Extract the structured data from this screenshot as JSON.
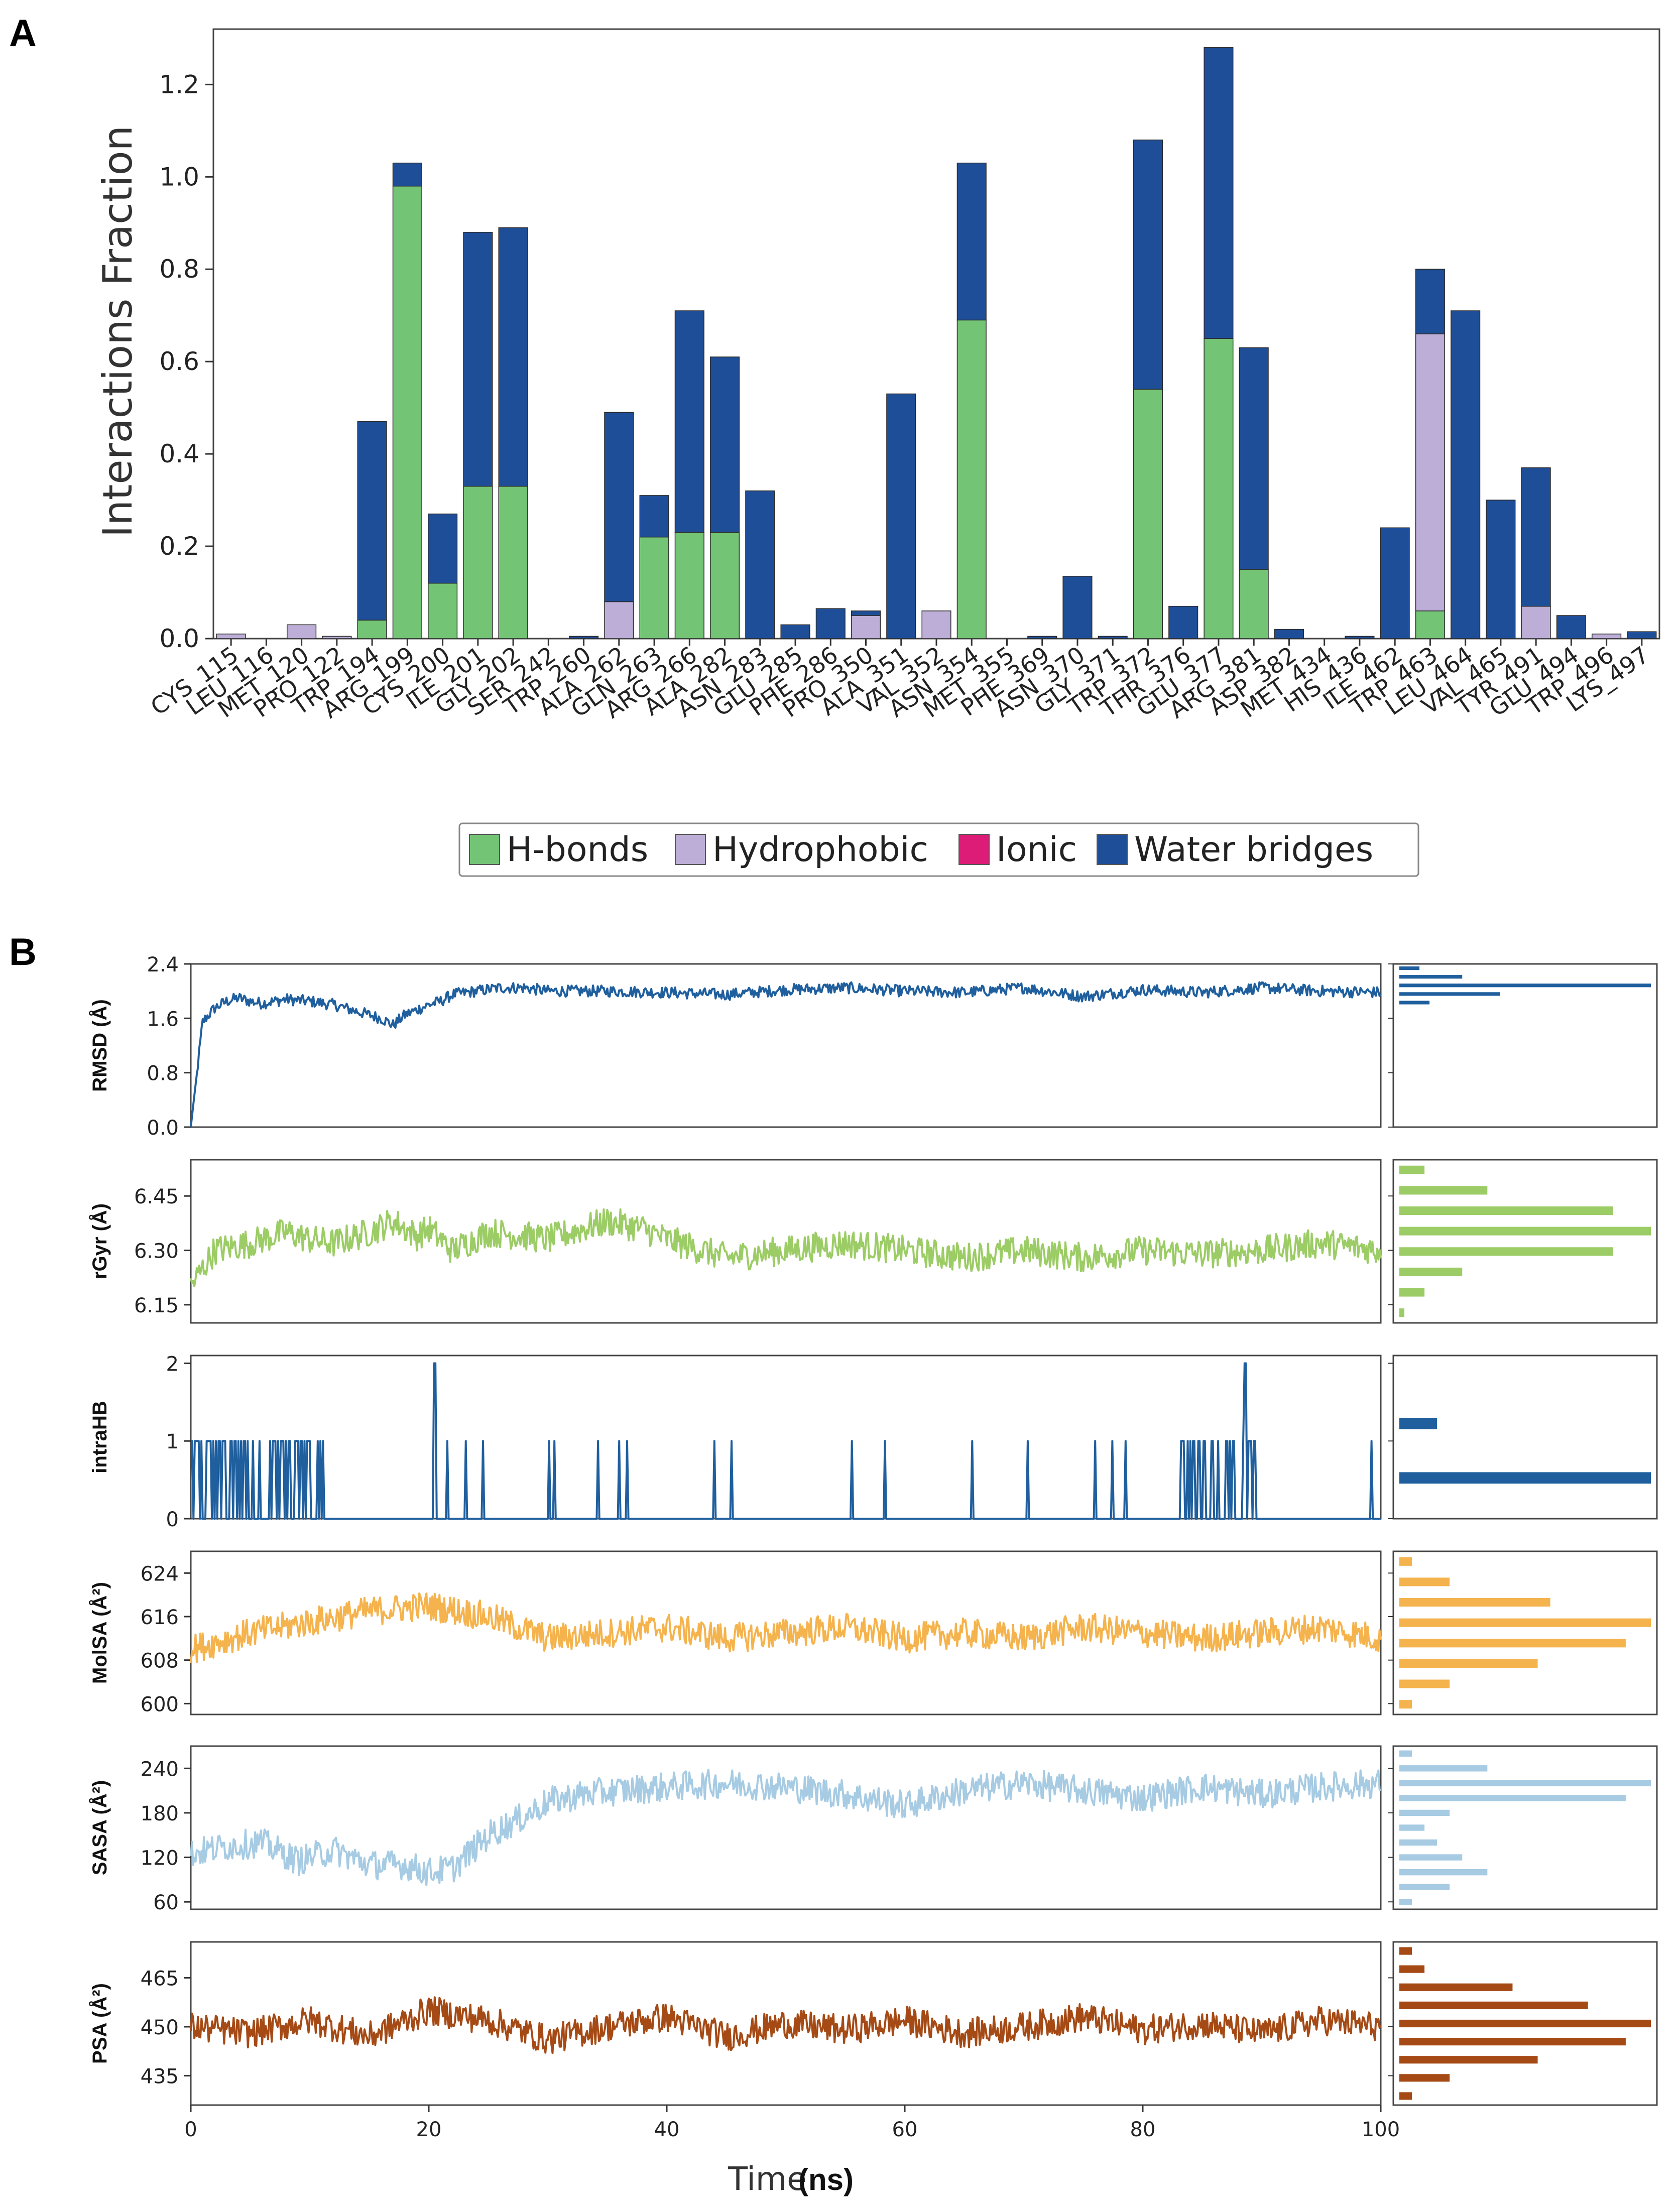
{
  "panel_a_label": "A",
  "panel_b_label": "B",
  "chart_data": [
    {
      "type": "bar",
      "stacked": true,
      "title": "",
      "ylabel": "Interactions Fraction",
      "xlabel": "",
      "ylim": [
        0,
        1.32
      ],
      "yticks": [
        0.0,
        0.2,
        0.4,
        0.6,
        0.8,
        1.0,
        1.2
      ],
      "categories": [
        "CYS_115",
        "LEU_116",
        "MET_120",
        "PRO_122",
        "TRP_194",
        "ARG_199",
        "CYS_200",
        "ILE_201",
        "GLY_202",
        "SER_242",
        "TRP_260",
        "ALA_262",
        "GLN_263",
        "ARG_266",
        "ALA_282",
        "ASN_283",
        "GLU_285",
        "PHE_286",
        "PRO_350",
        "ALA_351",
        "VAL_352",
        "ASN_354",
        "MET_355",
        "PHE_369",
        "ASN_370",
        "GLY_371",
        "TRP_372",
        "THR_376",
        "GLU_377",
        "ARG_381",
        "ASP_382",
        "MET_434",
        "HIS_436",
        "ILE_462",
        "TRP_463",
        "LEU_464",
        "VAL_465",
        "TYR_491",
        "GLU_494",
        "TRP_496",
        "LYS_497"
      ],
      "series": [
        {
          "name": "H-bonds",
          "color": "#74c476",
          "values": [
            0,
            0,
            0,
            0,
            0.04,
            0.98,
            0.12,
            0.33,
            0.33,
            0,
            0,
            0,
            0.22,
            0.23,
            0.23,
            0,
            0,
            0,
            0,
            0,
            0,
            0.69,
            0,
            0,
            0,
            0,
            0.54,
            0,
            0.65,
            0.15,
            0,
            0,
            0,
            0,
            0.06,
            0,
            0,
            0,
            0,
            0,
            0
          ]
        },
        {
          "name": "Hydrophobic",
          "color": "#bcaed6",
          "values": [
            0.01,
            0,
            0.03,
            0.005,
            0,
            0,
            0,
            0,
            0,
            0,
            0,
            0.08,
            0,
            0,
            0,
            0,
            0,
            0,
            0.05,
            0,
            0.06,
            0,
            0,
            0,
            0,
            0,
            0,
            0,
            0,
            0,
            0,
            0,
            0,
            0,
            0.6,
            0,
            0,
            0.07,
            0,
            0.01,
            0
          ]
        },
        {
          "name": "Ionic",
          "color": "#dd1c77",
          "values": [
            0,
            0,
            0,
            0,
            0,
            0,
            0,
            0,
            0,
            0,
            0,
            0,
            0,
            0,
            0,
            0,
            0,
            0,
            0,
            0,
            0,
            0,
            0,
            0,
            0,
            0,
            0,
            0,
            0,
            0,
            0,
            0,
            0,
            0,
            0,
            0,
            0,
            0,
            0,
            0,
            0
          ]
        },
        {
          "name": "Water bridges",
          "color": "#1f4e99",
          "values": [
            0,
            0,
            0,
            0,
            0.43,
            0.05,
            0.15,
            0.55,
            0.56,
            0,
            0.005,
            0.41,
            0.09,
            0.48,
            0.38,
            0.32,
            0.03,
            0.065,
            0.01,
            0.53,
            0,
            0.34,
            0,
            0.005,
            0.135,
            0.005,
            0.54,
            0.07,
            0.63,
            0.48,
            0.02,
            0,
            0.005,
            0.24,
            0.14,
            0.71,
            0.3,
            0.3,
            0.05,
            0,
            0.015
          ]
        }
      ],
      "legend": [
        "H-bonds",
        "Hydrophobic",
        "Ionic",
        "Water bridges"
      ],
      "legend_position": "bottom-center"
    },
    {
      "type": "line",
      "ylabel": "RMSD (Å)",
      "color": "#1f5f9e",
      "yticks": [
        "0.0",
        "0.8",
        "1.6",
        "2.4"
      ],
      "ylim": [
        0,
        2.4
      ],
      "x": [
        0,
        1,
        2,
        3,
        4,
        5,
        6,
        8,
        10,
        12,
        14,
        16,
        17,
        18,
        20,
        21,
        22,
        24,
        26,
        28,
        30,
        35,
        40,
        45,
        50,
        55,
        60,
        65,
        70,
        75,
        80,
        85,
        90,
        95,
        100
      ],
      "values": [
        0,
        1.55,
        1.75,
        1.85,
        1.9,
        1.85,
        1.82,
        1.88,
        1.85,
        1.8,
        1.7,
        1.6,
        1.5,
        1.65,
        1.8,
        1.85,
        1.95,
        2.0,
        2.05,
        2.05,
        2.0,
        2.0,
        1.98,
        1.95,
        2.02,
        2.05,
        2.0,
        1.98,
        2.05,
        1.92,
        2.02,
        1.98,
        2.05,
        2.0,
        1.98
      ],
      "hist": [
        0,
        0,
        0,
        0,
        0,
        0,
        0,
        0,
        0,
        0,
        0,
        0,
        0,
        0,
        0.12,
        0.4,
        1.0,
        0.25,
        0.08
      ]
    },
    {
      "type": "line",
      "ylabel": "rGyr (Å)",
      "color": "#9ccc65",
      "yticks": [
        "6.15",
        "6.30",
        "6.45"
      ],
      "ylim": [
        6.1,
        6.55
      ],
      "x": [
        0,
        2,
        5,
        8,
        10,
        12,
        15,
        17,
        19,
        20,
        22,
        25,
        28,
        30,
        32,
        35,
        38,
        40,
        45,
        50,
        55,
        60,
        65,
        70,
        75,
        80,
        85,
        90,
        95,
        100
      ],
      "values": [
        6.2,
        6.3,
        6.32,
        6.35,
        6.33,
        6.32,
        6.35,
        6.38,
        6.34,
        6.36,
        6.3,
        6.35,
        6.34,
        6.33,
        6.35,
        6.38,
        6.36,
        6.33,
        6.28,
        6.3,
        6.32,
        6.3,
        6.28,
        6.3,
        6.28,
        6.3,
        6.29,
        6.3,
        6.32,
        6.3
      ],
      "hist": [
        0.02,
        0.1,
        0.25,
        0.85,
        1.0,
        0.85,
        0.35,
        0.1
      ]
    },
    {
      "type": "line",
      "ylabel": "intraHB",
      "color": "#1f5f9e",
      "yticks": [
        "0",
        "1",
        "2"
      ],
      "ylim": [
        0,
        2.1
      ],
      "hist": [
        0,
        1.0,
        0,
        0.15,
        0,
        0
      ]
    },
    {
      "type": "line",
      "ylabel": "MolSA (Å²)",
      "color": "#f5b34d",
      "yticks": [
        "600",
        "608",
        "616",
        "624"
      ],
      "ylim": [
        598,
        628
      ],
      "x": [
        0,
        5,
        10,
        15,
        20,
        25,
        30,
        35,
        40,
        45,
        50,
        55,
        60,
        65,
        70,
        75,
        80,
        85,
        90,
        95,
        100
      ],
      "values": [
        610,
        613,
        615,
        617,
        618,
        616,
        612,
        613,
        614,
        612,
        613,
        614,
        612,
        613,
        612,
        614,
        613,
        612,
        613,
        614,
        612
      ],
      "hist": [
        0.05,
        0.2,
        0.55,
        0.9,
        1.0,
        0.6,
        0.2,
        0.05
      ]
    },
    {
      "type": "line",
      "ylabel": "SASA (Å²)",
      "color": "#a6cbe3",
      "yticks": [
        "60",
        "120",
        "180",
        "240"
      ],
      "ylim": [
        50,
        270
      ],
      "x": [
        0,
        3,
        6,
        9,
        12,
        15,
        18,
        20,
        22,
        25,
        28,
        30,
        33,
        36,
        40,
        45,
        50,
        55,
        60,
        65,
        70,
        75,
        80,
        85,
        90,
        95,
        100
      ],
      "values": [
        125,
        135,
        140,
        115,
        130,
        110,
        110,
        100,
        105,
        150,
        175,
        195,
        205,
        210,
        215,
        220,
        215,
        205,
        190,
        210,
        220,
        210,
        200,
        215,
        205,
        215,
        220
      ],
      "hist": [
        0.05,
        0.2,
        0.35,
        0.25,
        0.15,
        0.1,
        0.2,
        0.9,
        1.0,
        0.35,
        0.05
      ]
    },
    {
      "type": "line",
      "ylabel": "PSA (Å²)",
      "color": "#a54a15",
      "yticks": [
        "435",
        "450",
        "465"
      ],
      "ylim": [
        426,
        476
      ],
      "x": [
        0,
        5,
        10,
        15,
        20,
        25,
        30,
        35,
        40,
        45,
        50,
        55,
        60,
        65,
        70,
        75,
        80,
        85,
        90,
        95,
        100
      ],
      "values": [
        450,
        448,
        452,
        447,
        455,
        452,
        446,
        450,
        453,
        447,
        451,
        449,
        452,
        448,
        450,
        453,
        449,
        451,
        448,
        452,
        450
      ],
      "hist": [
        0.05,
        0.2,
        0.55,
        0.9,
        1.0,
        0.75,
        0.45,
        0.1,
        0.05
      ]
    }
  ],
  "x_axis": {
    "ticks": [
      "0",
      "20",
      "40",
      "60",
      "80",
      "100"
    ],
    "xlim": [
      0,
      100
    ],
    "label": "Time",
    "unit": "(ns)"
  }
}
